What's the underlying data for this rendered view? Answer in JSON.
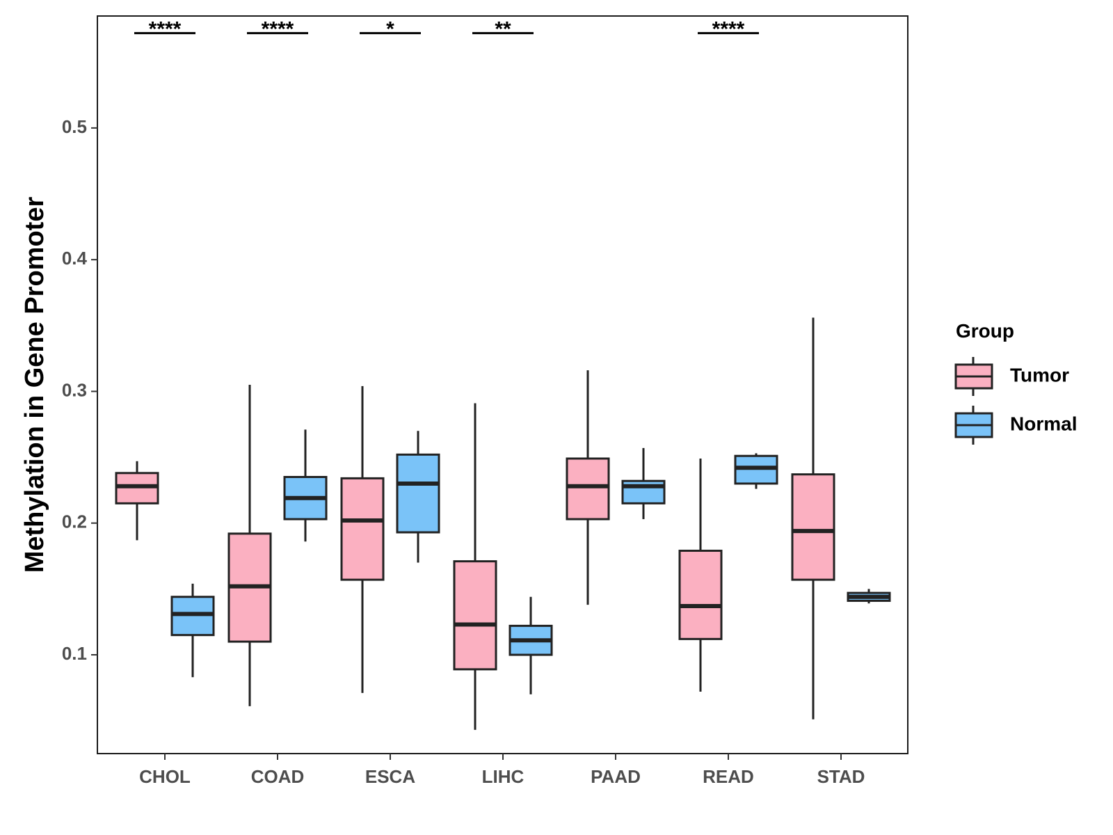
{
  "chart_data": {
    "type": "boxplot",
    "title": "",
    "xlabel": "",
    "ylabel": "Methylation in Gene Promoter",
    "ylim": [
      0.025,
      0.585
    ],
    "yticks": [
      0.1,
      0.2,
      0.3,
      0.4,
      0.5
    ],
    "ytick_labels": [
      "0.1",
      "0.2",
      "0.3",
      "0.4",
      "0.5"
    ],
    "categories": [
      "CHOL",
      "COAD",
      "ESCA",
      "LIHC",
      "PAAD",
      "READ",
      "STAD"
    ],
    "legend": {
      "title": "Group",
      "position": "right",
      "items": [
        {
          "label": "Tumor",
          "color": "#FBB0C1"
        },
        {
          "label": "Normal",
          "color": "#7AC3F8"
        }
      ]
    },
    "series": [
      {
        "name": "Tumor",
        "color": "#FBB0C1",
        "boxes": [
          {
            "category": "CHOL",
            "min": 0.187,
            "q1": 0.215,
            "median": 0.228,
            "q3": 0.238,
            "max": 0.247
          },
          {
            "category": "COAD",
            "min": 0.061,
            "q1": 0.11,
            "median": 0.152,
            "q3": 0.192,
            "max": 0.305
          },
          {
            "category": "ESCA",
            "min": 0.071,
            "q1": 0.157,
            "median": 0.202,
            "q3": 0.234,
            "max": 0.304
          },
          {
            "category": "LIHC",
            "min": 0.043,
            "q1": 0.089,
            "median": 0.123,
            "q3": 0.171,
            "max": 0.291
          },
          {
            "category": "PAAD",
            "min": 0.138,
            "q1": 0.203,
            "median": 0.228,
            "q3": 0.249,
            "max": 0.316
          },
          {
            "category": "READ",
            "min": 0.072,
            "q1": 0.112,
            "median": 0.137,
            "q3": 0.179,
            "max": 0.249
          },
          {
            "category": "STAD",
            "min": 0.051,
            "q1": 0.157,
            "median": 0.194,
            "q3": 0.237,
            "max": 0.356
          }
        ]
      },
      {
        "name": "Normal",
        "color": "#7AC3F8",
        "boxes": [
          {
            "category": "CHOL",
            "min": 0.083,
            "q1": 0.115,
            "median": 0.131,
            "q3": 0.144,
            "max": 0.154
          },
          {
            "category": "COAD",
            "min": 0.186,
            "q1": 0.203,
            "median": 0.219,
            "q3": 0.235,
            "max": 0.271
          },
          {
            "category": "ESCA",
            "min": 0.17,
            "q1": 0.193,
            "median": 0.23,
            "q3": 0.252,
            "max": 0.27
          },
          {
            "category": "LIHC",
            "min": 0.07,
            "q1": 0.1,
            "median": 0.111,
            "q3": 0.122,
            "max": 0.144
          },
          {
            "category": "PAAD",
            "min": 0.203,
            "q1": 0.215,
            "median": 0.228,
            "q3": 0.232,
            "max": 0.257
          },
          {
            "category": "READ",
            "min": 0.226,
            "q1": 0.23,
            "median": 0.242,
            "q3": 0.251,
            "max": 0.253
          },
          {
            "category": "STAD",
            "min": 0.139,
            "q1": 0.141,
            "median": 0.144,
            "q3": 0.147,
            "max": 0.15
          }
        ]
      }
    ],
    "significance": [
      {
        "category": "CHOL",
        "label": "****"
      },
      {
        "category": "COAD",
        "label": "****"
      },
      {
        "category": "ESCA",
        "label": "*"
      },
      {
        "category": "LIHC",
        "label": "**"
      },
      {
        "category": "READ",
        "label": "****"
      }
    ],
    "significance_level": 0.572,
    "grid": false
  }
}
